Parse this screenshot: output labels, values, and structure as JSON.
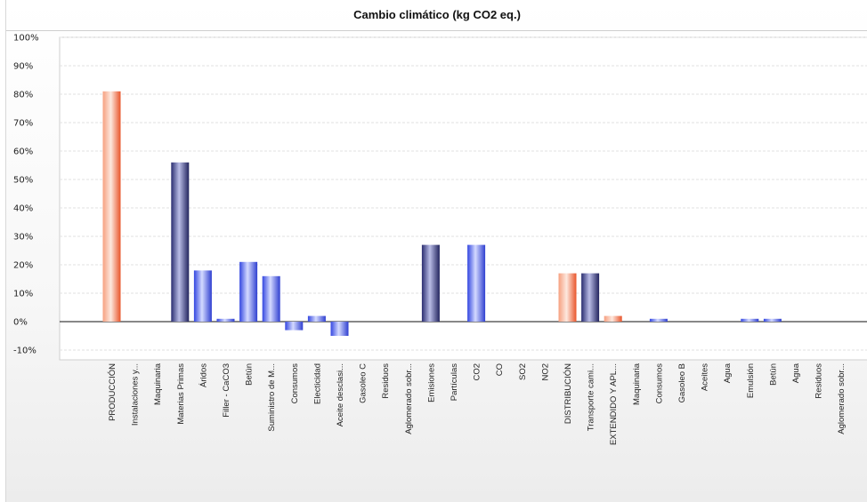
{
  "chart_data": {
    "type": "bar",
    "title": "Cambio climático (kg CO2 eq.)",
    "xlabel": "",
    "ylabel": "",
    "ylim": [
      -13,
      100
    ],
    "yticks": [
      100,
      90,
      80,
      70,
      60,
      50,
      40,
      30,
      20,
      10,
      0,
      -10
    ],
    "ytick_suffix": "%",
    "grid": true,
    "legend": "none",
    "categories": [
      "PRODUCCIÓN",
      "Instalaciones y...",
      "Maquinaria",
      "Materias Primas",
      "Áridos",
      "Filler - CaCO3",
      "Betún",
      "Suministro de M...",
      "Consumos",
      "Electicidad",
      "Aceite desclasi...",
      "Gasoleo C",
      "Residuos",
      "Aglomerado sobr...",
      "Emisiones",
      "Partículas",
      "CO2",
      "CO",
      "SO2",
      "NO2",
      "DISTRIBUCIÓN",
      "Transporte cami...",
      "EXTENDIDO Y APL...",
      "Maquinaria",
      "Consumos",
      "Gasoleo B",
      "Aceites",
      "Agua",
      "Emulsión",
      "Betún",
      "Agua",
      "Residuos",
      "Aglomerado sobr..."
    ],
    "values": [
      81,
      0,
      0,
      56,
      18,
      1,
      21,
      16,
      -3,
      2,
      -5,
      0,
      0,
      0,
      27,
      0,
      27,
      0,
      0,
      0,
      17,
      17,
      2,
      0,
      1,
      0,
      0,
      0,
      1,
      1,
      0,
      0,
      0
    ],
    "bar_types": [
      "stage",
      "none",
      "none",
      "group",
      "leaf",
      "leaf",
      "leaf",
      "leaf",
      "leaf",
      "leaf",
      "leaf",
      "none",
      "none",
      "none",
      "group",
      "none",
      "leaf",
      "none",
      "none",
      "none",
      "stage",
      "group",
      "stage",
      "none",
      "leaf",
      "none",
      "none",
      "none",
      "leaf",
      "leaf",
      "none",
      "none",
      "none"
    ],
    "colors": {
      "stage": "#f0704a",
      "group": "#3c3f8e",
      "leaf": "#4a5cf0"
    }
  }
}
